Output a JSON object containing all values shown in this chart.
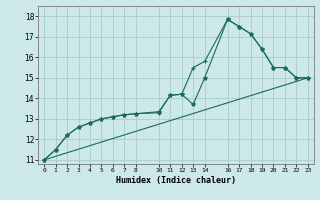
{
  "xlabel": "Humidex (Indice chaleur)",
  "bg_color": "#cce8e8",
  "line_color": "#1a6b5a",
  "grid_color": "#aacccc",
  "xlim": [
    -0.5,
    23.5
  ],
  "ylim": [
    10.8,
    18.5
  ],
  "xticks": [
    0,
    1,
    2,
    3,
    4,
    5,
    6,
    7,
    8,
    10,
    11,
    12,
    13,
    14,
    16,
    17,
    18,
    19,
    20,
    21,
    22,
    23
  ],
  "xticklabels": [
    "0",
    "1",
    "2",
    "3",
    "4",
    "5",
    "6",
    "7",
    "8",
    "10",
    "11",
    "12",
    "13",
    "14",
    "16",
    "17",
    "18",
    "19",
    "20",
    "21",
    "22",
    "23"
  ],
  "yticks": [
    11,
    12,
    13,
    14,
    15,
    16,
    17,
    18
  ],
  "line1_x": [
    0,
    1,
    2,
    3,
    4,
    5,
    6,
    7,
    8,
    10,
    11,
    12,
    13,
    14,
    16,
    17,
    18,
    19,
    20,
    21,
    22,
    23
  ],
  "line1_y": [
    11.0,
    11.5,
    12.2,
    12.6,
    12.8,
    13.0,
    13.1,
    13.2,
    13.25,
    13.3,
    14.15,
    14.2,
    15.5,
    15.8,
    17.85,
    17.5,
    17.15,
    16.4,
    15.5,
    15.5,
    15.0,
    15.0
  ],
  "line2_x": [
    0,
    1,
    2,
    3,
    4,
    5,
    6,
    7,
    8,
    10,
    11,
    12,
    13,
    14,
    16,
    17,
    18,
    19,
    20,
    21,
    22,
    23
  ],
  "line2_y": [
    11.0,
    11.5,
    12.2,
    12.6,
    12.8,
    13.0,
    13.1,
    13.2,
    13.25,
    13.35,
    14.15,
    14.2,
    13.7,
    15.0,
    17.85,
    17.5,
    17.15,
    16.4,
    15.5,
    15.5,
    15.0,
    15.0
  ],
  "line3_x": [
    0,
    23
  ],
  "line3_y": [
    11.0,
    15.0
  ]
}
